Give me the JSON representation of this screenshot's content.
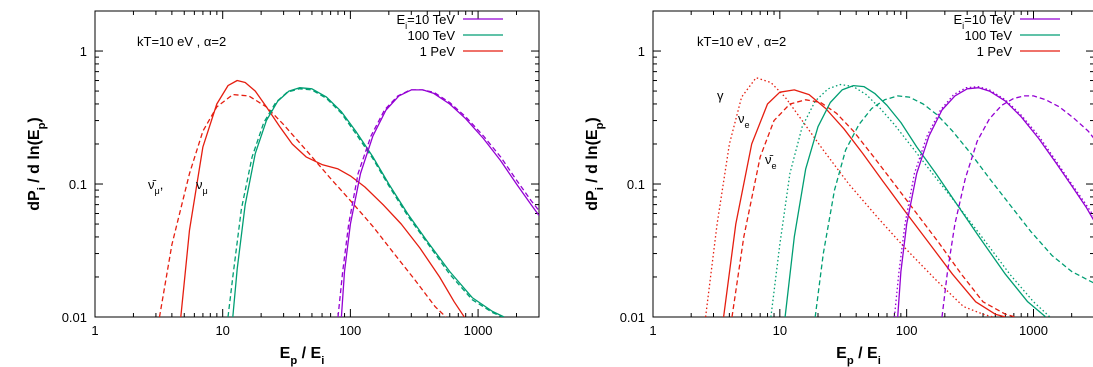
{
  "chart_data": [
    {
      "type": "line",
      "xscale": "log",
      "yscale": "log",
      "xlim": [
        1,
        3000
      ],
      "ylim": [
        0.01,
        2
      ],
      "xticks": [
        "1",
        "10",
        "100",
        "1000"
      ],
      "yticks": [
        "0.01",
        "0.1",
        "1"
      ],
      "xlabel": {
        "base": "E",
        "sub1": "p",
        "mid": " / E",
        "sub2": "i"
      },
      "ylabel": {
        "base": "dP",
        "sub1": "i",
        "mid": " / d ln(E",
        "sub2": "p",
        "end": ")"
      },
      "params_text": "kT=10 eV , α=2",
      "legend": [
        {
          "label": "E",
          "sub": "i",
          "rest": "=10 TeV",
          "color": "#9400D3"
        },
        {
          "label": "100 TeV",
          "sub": "",
          "rest": "",
          "color": "#009E73"
        },
        {
          "label": "1 PeV",
          "sub": "",
          "rest": "",
          "color": "#E51E10"
        }
      ],
      "annotations": [
        {
          "base": "ν̄",
          "sub": "μ",
          "after": ","
        },
        {
          "base": "ν",
          "sub": "μ",
          "after": ""
        }
      ],
      "series": [
        {
          "energy": "1 PeV",
          "particle": "nu_mu",
          "dash": "solid",
          "color": "#E51E10",
          "x": [
            4.7,
            5.5,
            7,
            9,
            11,
            13,
            15,
            18,
            22,
            28,
            35,
            45,
            60,
            80,
            100,
            130,
            180,
            250,
            350,
            500,
            650,
            780
          ],
          "y": [
            0.01,
            0.045,
            0.19,
            0.4,
            0.55,
            0.6,
            0.58,
            0.5,
            0.38,
            0.27,
            0.2,
            0.16,
            0.14,
            0.13,
            0.115,
            0.095,
            0.07,
            0.05,
            0.033,
            0.02,
            0.013,
            0.01
          ]
        },
        {
          "energy": "1 PeV",
          "particle": "nubar_mu",
          "dash": "dashed",
          "color": "#E51E10",
          "x": [
            3.2,
            4,
            5.5,
            7,
            9,
            12,
            16,
            22,
            30,
            45,
            70,
            100,
            150,
            220,
            320,
            460,
            560
          ],
          "y": [
            0.01,
            0.035,
            0.12,
            0.25,
            0.38,
            0.47,
            0.46,
            0.38,
            0.28,
            0.18,
            0.11,
            0.075,
            0.048,
            0.03,
            0.019,
            0.012,
            0.01
          ]
        },
        {
          "energy": "100 TeV",
          "particle": "nu_mu",
          "dash": "solid",
          "color": "#009E73",
          "x": [
            12,
            13,
            15,
            18,
            22,
            27,
            33,
            40,
            50,
            65,
            85,
            110,
            150,
            200,
            280,
            400,
            600,
            900,
            1300,
            1600
          ],
          "y": [
            0.01,
            0.023,
            0.07,
            0.17,
            0.3,
            0.42,
            0.5,
            0.53,
            0.52,
            0.45,
            0.35,
            0.25,
            0.16,
            0.1,
            0.06,
            0.037,
            0.022,
            0.014,
            0.011,
            0.01
          ]
        },
        {
          "energy": "100 TeV",
          "particle": "nubar_mu",
          "dash": "dashed",
          "color": "#009E73",
          "x": [
            11,
            12,
            14,
            17,
            21,
            26,
            32,
            40,
            50,
            65,
            85,
            110,
            150,
            200,
            280,
            400,
            600,
            900,
            1300,
            1550
          ],
          "y": [
            0.01,
            0.02,
            0.065,
            0.16,
            0.29,
            0.41,
            0.49,
            0.52,
            0.51,
            0.44,
            0.34,
            0.24,
            0.155,
            0.097,
            0.058,
            0.036,
            0.021,
            0.0135,
            0.0108,
            0.01
          ]
        },
        {
          "energy": "10 TeV",
          "particle": "nu_mu",
          "dash": "solid",
          "color": "#9400D3",
          "x": [
            85,
            90,
            100,
            120,
            150,
            190,
            240,
            300,
            370,
            450,
            600,
            800,
            1100,
            1500,
            2000,
            2600,
            3000
          ],
          "y": [
            0.01,
            0.022,
            0.05,
            0.12,
            0.23,
            0.36,
            0.46,
            0.51,
            0.51,
            0.48,
            0.4,
            0.31,
            0.22,
            0.15,
            0.1,
            0.07,
            0.058
          ]
        },
        {
          "energy": "10 TeV",
          "particle": "nubar_mu",
          "dash": "dashed",
          "color": "#9400D3",
          "x": [
            80,
            87,
            97,
            115,
            145,
            185,
            235,
            295,
            365,
            450,
            600,
            800,
            1100,
            1500,
            2000,
            2600,
            3000
          ],
          "y": [
            0.01,
            0.022,
            0.05,
            0.12,
            0.23,
            0.36,
            0.46,
            0.51,
            0.51,
            0.49,
            0.41,
            0.32,
            0.23,
            0.16,
            0.107,
            0.075,
            0.063
          ]
        }
      ]
    },
    {
      "type": "line",
      "xscale": "log",
      "yscale": "log",
      "xlim": [
        1,
        3000
      ],
      "ylim": [
        0.01,
        2
      ],
      "xticks": [
        "1",
        "10",
        "100",
        "1000"
      ],
      "yticks": [
        "0.01",
        "0.1",
        "1"
      ],
      "xlabel": {
        "base": "E",
        "sub1": "p",
        "mid": " / E",
        "sub2": "i"
      },
      "ylabel": {
        "base": "dP",
        "sub1": "i",
        "mid": " / d ln(E",
        "sub2": "p",
        "end": ")"
      },
      "params_text": "kT=10 eV , α=2",
      "legend": [
        {
          "label": "E",
          "sub": "i",
          "rest": "=10 TeV",
          "color": "#9400D3"
        },
        {
          "label": "100 TeV",
          "sub": "",
          "rest": "",
          "color": "#009E73"
        },
        {
          "label": "1 PeV",
          "sub": "",
          "rest": "",
          "color": "#E51E10"
        }
      ],
      "annotations": [
        {
          "base": "γ",
          "sub": "",
          "after": ""
        },
        {
          "base": "ν",
          "sub": "e",
          "after": ""
        },
        {
          "base": "ν̄",
          "sub": "e",
          "after": ""
        }
      ],
      "series": [
        {
          "energy": "1 PeV",
          "particle": "gamma",
          "dash": "dotted",
          "color": "#E51E10",
          "x": [
            2.6,
            3.2,
            4,
            5,
            6.5,
            8.5,
            11,
            15,
            22,
            35,
            60,
            100,
            170,
            280,
            400,
            480
          ],
          "y": [
            0.01,
            0.05,
            0.2,
            0.45,
            0.63,
            0.58,
            0.45,
            0.3,
            0.18,
            0.1,
            0.055,
            0.032,
            0.019,
            0.012,
            0.0105,
            0.01
          ]
        },
        {
          "energy": "1 PeV",
          "particle": "nu_e",
          "dash": "solid",
          "color": "#E51E10",
          "x": [
            3.6,
            4.5,
            6,
            8,
            10,
            13,
            17,
            23,
            32,
            45,
            65,
            100,
            150,
            230,
            350,
            500,
            600
          ],
          "y": [
            0.01,
            0.05,
            0.2,
            0.4,
            0.49,
            0.51,
            0.47,
            0.37,
            0.26,
            0.17,
            0.105,
            0.06,
            0.036,
            0.021,
            0.013,
            0.0105,
            0.01
          ]
        },
        {
          "energy": "1 PeV",
          "particle": "nubar_e",
          "dash": "dashed",
          "color": "#E51E10",
          "x": [
            4.2,
            5.2,
            7,
            9,
            12,
            16,
            21,
            28,
            38,
            55,
            80,
            120,
            180,
            270,
            400,
            600,
            720
          ],
          "y": [
            0.01,
            0.04,
            0.16,
            0.3,
            0.4,
            0.43,
            0.41,
            0.34,
            0.25,
            0.16,
            0.1,
            0.06,
            0.036,
            0.021,
            0.013,
            0.0105,
            0.01
          ]
        },
        {
          "energy": "100 TeV",
          "particle": "gamma",
          "dash": "dotted",
          "color": "#009E73",
          "x": [
            8.5,
            10,
            12,
            15,
            19,
            24,
            30,
            38,
            48,
            62,
            80,
            110,
            160,
            250,
            400,
            650,
            1000,
            1350
          ],
          "y": [
            0.01,
            0.035,
            0.12,
            0.27,
            0.42,
            0.52,
            0.56,
            0.54,
            0.47,
            0.37,
            0.28,
            0.19,
            0.12,
            0.07,
            0.039,
            0.021,
            0.013,
            0.01
          ]
        },
        {
          "energy": "100 TeV",
          "particle": "nu_e",
          "dash": "solid",
          "color": "#009E73",
          "x": [
            11,
            13,
            16,
            20,
            25,
            31,
            38,
            46,
            56,
            70,
            90,
            120,
            170,
            250,
            380,
            600,
            900,
            1250
          ],
          "y": [
            0.01,
            0.04,
            0.13,
            0.27,
            0.41,
            0.51,
            0.55,
            0.54,
            0.48,
            0.39,
            0.29,
            0.19,
            0.12,
            0.07,
            0.039,
            0.021,
            0.013,
            0.01
          ]
        },
        {
          "energy": "100 TeV",
          "particle": "nubar_e",
          "dash": "dashed",
          "color": "#009E73",
          "x": [
            19,
            22,
            27,
            33,
            42,
            53,
            67,
            85,
            105,
            135,
            175,
            230,
            320,
            450,
            650,
            950,
            1400,
            2000,
            3000
          ],
          "y": [
            0.01,
            0.03,
            0.09,
            0.18,
            0.28,
            0.37,
            0.43,
            0.46,
            0.45,
            0.4,
            0.33,
            0.25,
            0.17,
            0.11,
            0.07,
            0.044,
            0.029,
            0.022,
            0.018
          ]
        },
        {
          "energy": "10 TeV",
          "particle": "gamma",
          "dash": "dotted",
          "color": "#9400D3",
          "x": [
            80,
            87,
            97,
            115,
            145,
            185,
            235,
            295,
            365,
            450,
            600,
            800,
            1100,
            1500,
            2000,
            2600,
            3000
          ],
          "y": [
            0.01,
            0.022,
            0.05,
            0.12,
            0.23,
            0.36,
            0.47,
            0.53,
            0.54,
            0.51,
            0.43,
            0.33,
            0.23,
            0.15,
            0.1,
            0.07,
            0.057
          ]
        },
        {
          "energy": "10 TeV",
          "particle": "nu_e",
          "dash": "solid",
          "color": "#9400D3",
          "x": [
            85,
            90,
            100,
            120,
            150,
            190,
            240,
            300,
            370,
            450,
            600,
            800,
            1100,
            1500,
            2000,
            2600,
            3000
          ],
          "y": [
            0.01,
            0.022,
            0.05,
            0.12,
            0.23,
            0.36,
            0.46,
            0.52,
            0.53,
            0.5,
            0.42,
            0.32,
            0.22,
            0.145,
            0.097,
            0.067,
            0.053
          ]
        },
        {
          "energy": "10 TeV",
          "particle": "nubar_e",
          "dash": "dashed",
          "color": "#9400D3",
          "x": [
            190,
            210,
            240,
            290,
            360,
            450,
            560,
            700,
            850,
            1000,
            1250,
            1600,
            2100,
            2700,
            3000
          ],
          "y": [
            0.01,
            0.022,
            0.05,
            0.11,
            0.21,
            0.31,
            0.39,
            0.44,
            0.46,
            0.46,
            0.43,
            0.38,
            0.31,
            0.25,
            0.22
          ]
        }
      ]
    }
  ]
}
